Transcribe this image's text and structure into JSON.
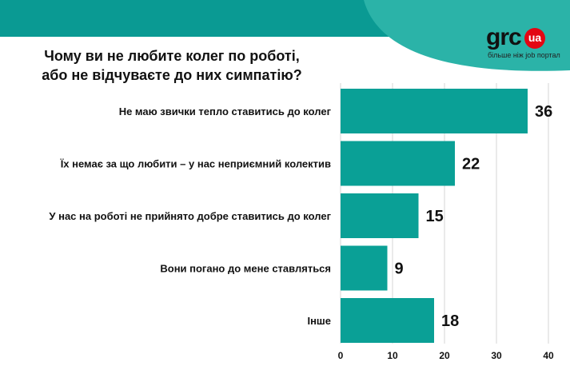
{
  "brand": {
    "name": "grc",
    "badge": "ua",
    "tagline": "більше ніж job портал"
  },
  "colors": {
    "bar": "#0aa096",
    "header": "#0a9a93",
    "wave": "#2bb3a8",
    "grid": "#d6d6d6",
    "brand_red": "#e30613"
  },
  "chart_data": {
    "type": "bar",
    "orientation": "horizontal",
    "title": "Чому ви не любите колег по роботі, або не відчуваєте до них симпатію?",
    "title_lines": [
      "Чому ви не любите колег по роботі,",
      "або не відчуваєте до них симпатію?"
    ],
    "categories": [
      "Не маю звички тепло ставитись до колег",
      "Їх немає за що любити – у нас неприємний колектив",
      "У нас на роботі не прийнято добре ставитись до колег",
      "Вони погано до мене ставляться",
      "Інше"
    ],
    "values": [
      36,
      22,
      15,
      9,
      18
    ],
    "xlim": [
      0,
      40
    ],
    "xticks": [
      0,
      10,
      20,
      30,
      40
    ],
    "xlabel": "",
    "ylabel": "",
    "grid": true
  }
}
